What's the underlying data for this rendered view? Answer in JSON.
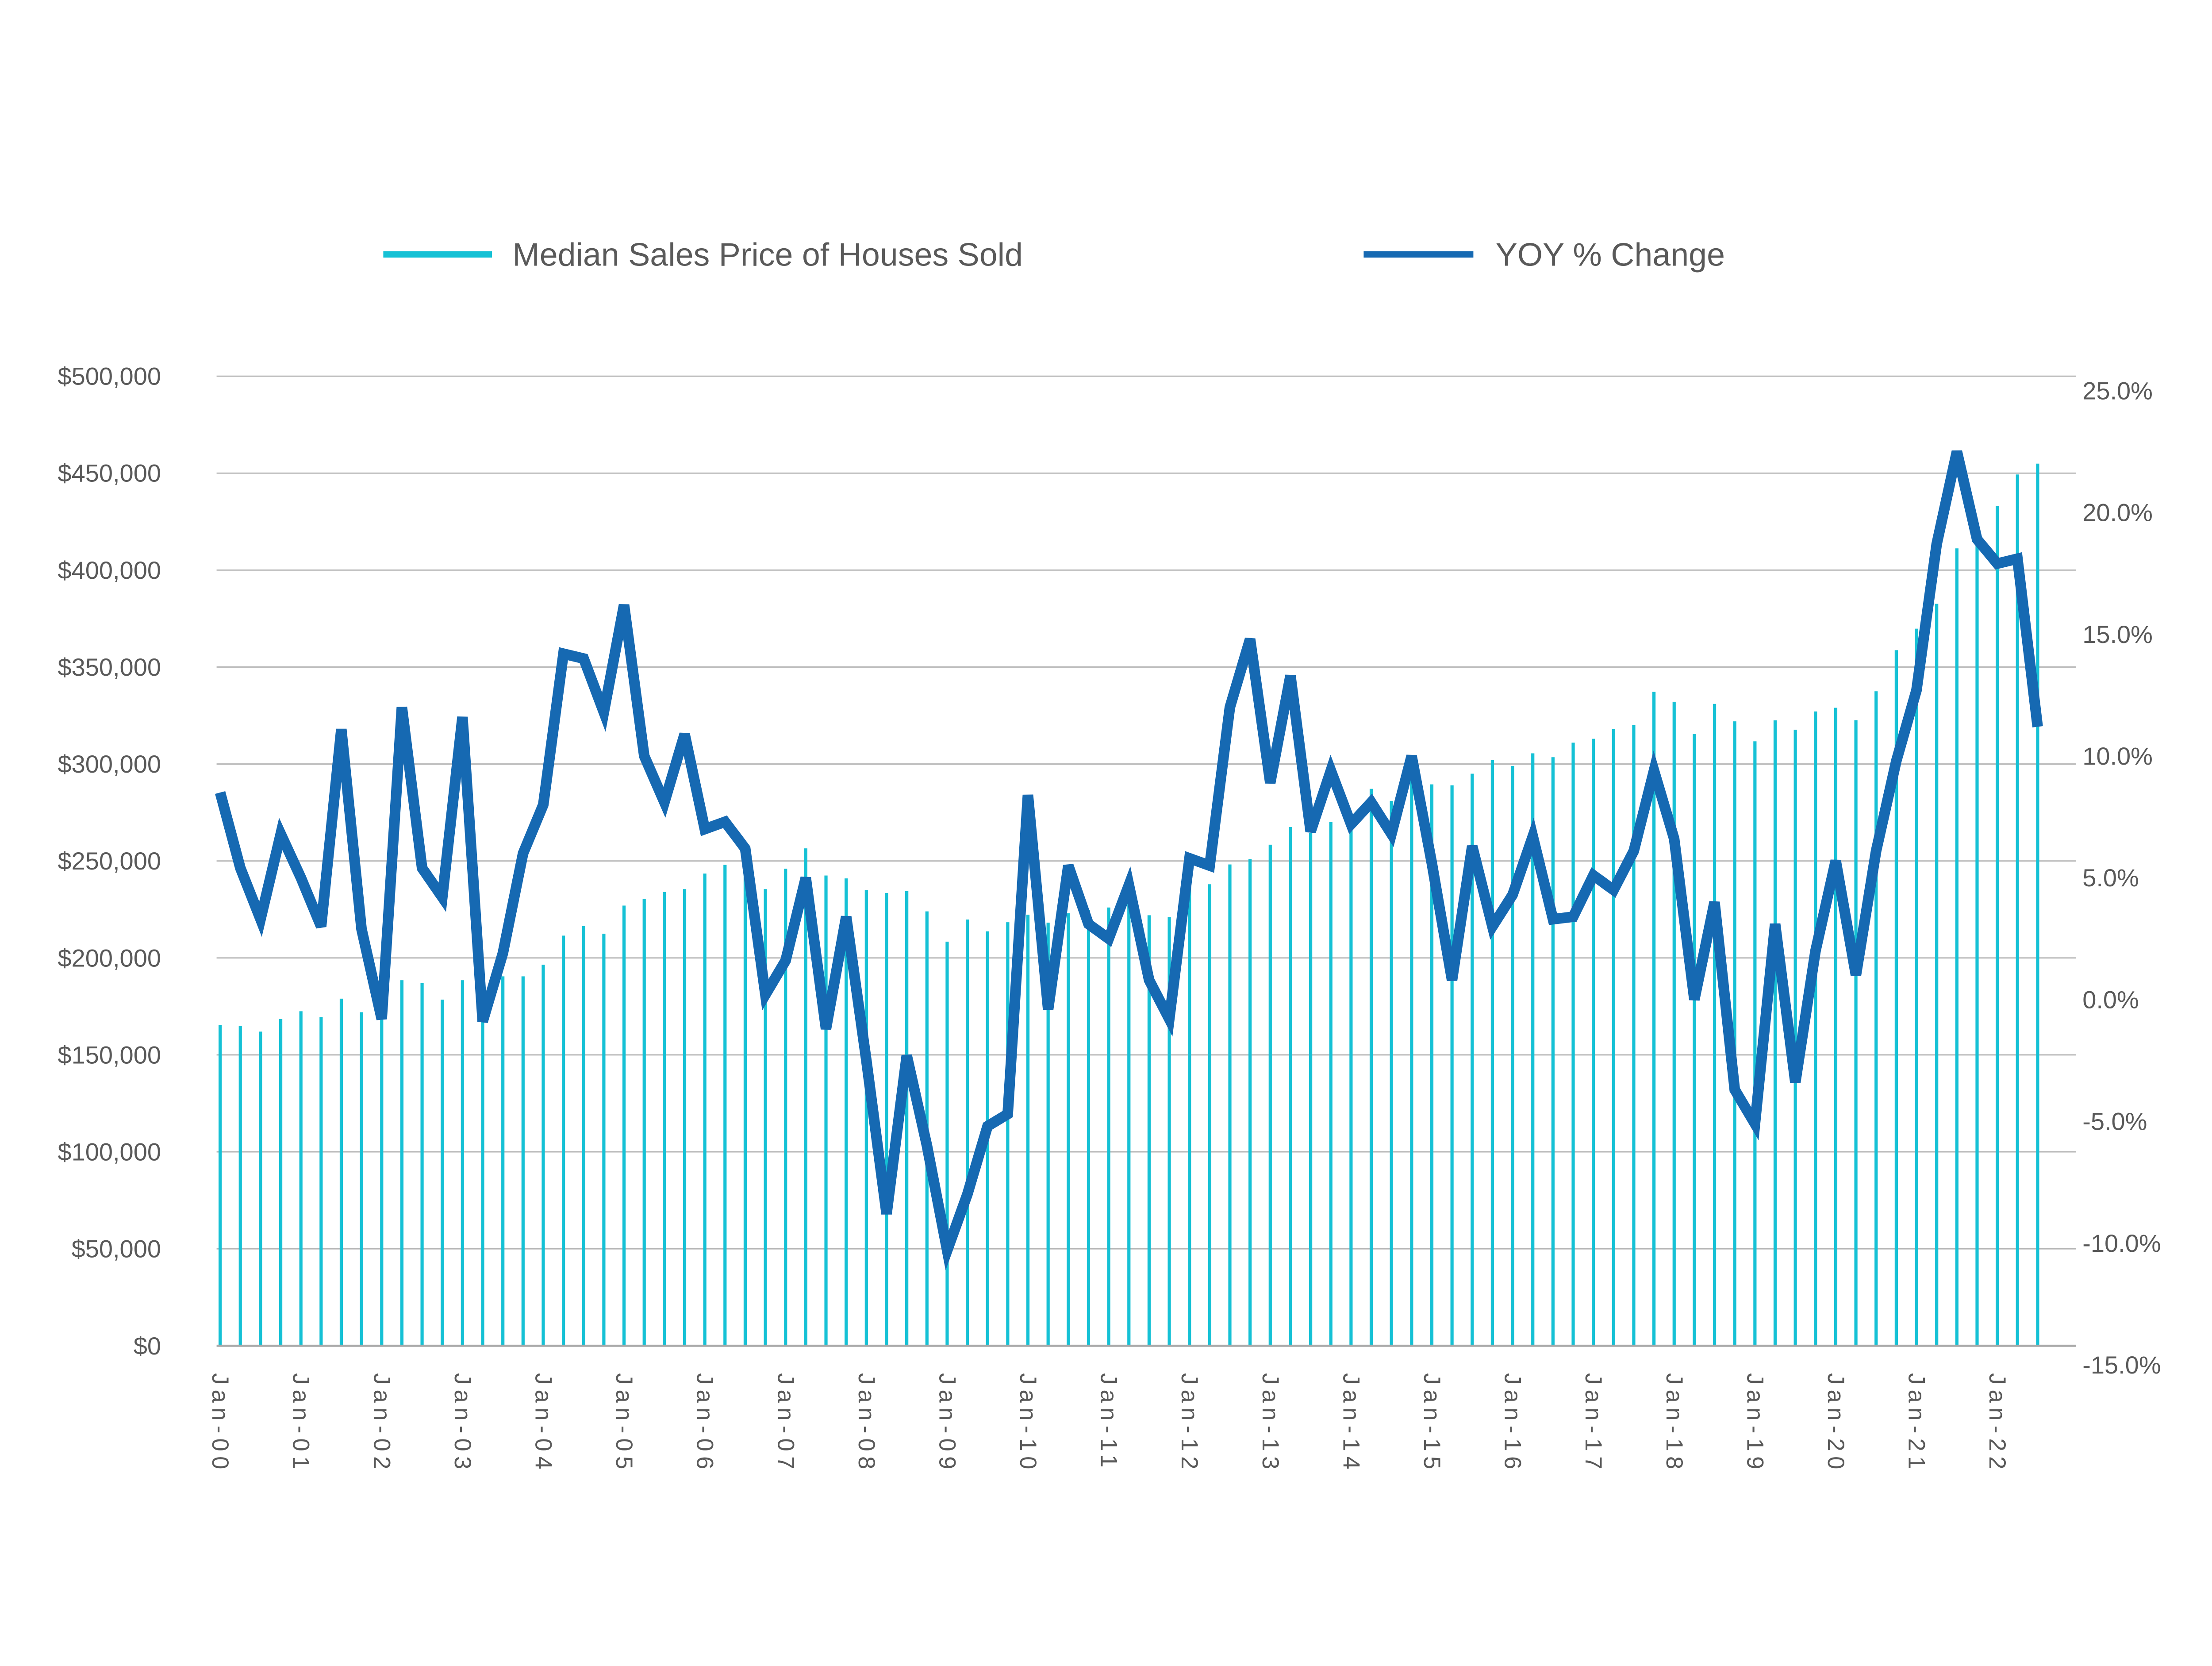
{
  "page": {
    "background": "#ffffff"
  },
  "colors": {
    "bar": "#15C1D5",
    "line": "#1669B2",
    "grid": "#B5B5B5",
    "axis_line": "#A9A9A9",
    "label_text": "#595959"
  },
  "legend": {
    "items": [
      {
        "label": "Median Sales Price of Houses Sold",
        "color": "#15C1D5"
      },
      {
        "label": "YOY % Change",
        "color": "#1669B2"
      }
    ]
  },
  "chart_data": {
    "type": "combo-bar-line",
    "title": "",
    "grid": "horizontal",
    "legend_position": "top",
    "x": [
      "2000-Q1",
      "2000-Q2",
      "2000-Q3",
      "2000-Q4",
      "2001-Q1",
      "2001-Q2",
      "2001-Q3",
      "2001-Q4",
      "2002-Q1",
      "2002-Q2",
      "2002-Q3",
      "2002-Q4",
      "2003-Q1",
      "2003-Q2",
      "2003-Q3",
      "2003-Q4",
      "2004-Q1",
      "2004-Q2",
      "2004-Q3",
      "2004-Q4",
      "2005-Q1",
      "2005-Q2",
      "2005-Q3",
      "2005-Q4",
      "2006-Q1",
      "2006-Q2",
      "2006-Q3",
      "2006-Q4",
      "2007-Q1",
      "2007-Q2",
      "2007-Q3",
      "2007-Q4",
      "2008-Q1",
      "2008-Q2",
      "2008-Q3",
      "2008-Q4",
      "2009-Q1",
      "2009-Q2",
      "2009-Q3",
      "2009-Q4",
      "2010-Q1",
      "2010-Q2",
      "2010-Q3",
      "2010-Q4",
      "2011-Q1",
      "2011-Q2",
      "2011-Q3",
      "2011-Q4",
      "2012-Q1",
      "2012-Q2",
      "2012-Q3",
      "2012-Q4",
      "2013-Q1",
      "2013-Q2",
      "2013-Q3",
      "2013-Q4",
      "2014-Q1",
      "2014-Q2",
      "2014-Q3",
      "2014-Q4",
      "2015-Q1",
      "2015-Q2",
      "2015-Q3",
      "2015-Q4",
      "2016-Q1",
      "2016-Q2",
      "2016-Q3",
      "2016-Q4",
      "2017-Q1",
      "2017-Q2",
      "2017-Q3",
      "2017-Q4",
      "2018-Q1",
      "2018-Q2",
      "2018-Q3",
      "2018-Q4",
      "2019-Q1",
      "2019-Q2",
      "2019-Q3",
      "2019-Q4",
      "2020-Q1",
      "2020-Q2",
      "2020-Q3",
      "2020-Q4",
      "2021-Q1",
      "2021-Q2",
      "2021-Q3",
      "2021-Q4",
      "2022-Q1",
      "2022-Q2",
      "2022-Q3"
    ],
    "x_tick_labels": [
      "Jan-00",
      "Jan-01",
      "Jan-02",
      "Jan-03",
      "Jan-04",
      "Jan-05",
      "Jan-06",
      "Jan-07",
      "Jan-08",
      "Jan-09",
      "Jan-10",
      "Jan-11",
      "Jan-12",
      "Jan-13",
      "Jan-14",
      "Jan-15",
      "Jan-16",
      "Jan-17",
      "Jan-18",
      "Jan-19",
      "Jan-20",
      "Jan-21",
      "Jan-22"
    ],
    "series": [
      {
        "name": "Median Sales Price of Houses Sold",
        "type": "bar",
        "axis": "left",
        "color": "#15C1D5",
        "values": [
          165300,
          165000,
          162000,
          168500,
          172500,
          169500,
          179000,
          172000,
          171000,
          188500,
          187000,
          178500,
          188500,
          186500,
          190500,
          190500,
          196500,
          211500,
          216500,
          212500,
          227000,
          230500,
          234000,
          235500,
          243500,
          248000,
          245500,
          235500,
          246000,
          256500,
          242500,
          241000,
          235000,
          233500,
          234500,
          224000,
          208400,
          219800,
          213700,
          218400,
          222300,
          218200,
          223000,
          224600,
          226000,
          230700,
          222000,
          221000,
          238000,
          238000,
          248200,
          251000,
          258400,
          267500,
          264500,
          270000,
          274300,
          287200,
          281000,
          294000,
          289500,
          289000,
          295000,
          302000,
          299000,
          305500,
          303500,
          311000,
          313000,
          318000,
          320000,
          337200,
          332100,
          315400,
          331000,
          322000,
          311700,
          322500,
          317700,
          327100,
          329000,
          322600,
          337500,
          358700,
          369800,
          382600,
          411200,
          423600,
          433100,
          449300,
          454900
        ]
      },
      {
        "name": "YOY % Change",
        "type": "line",
        "axis": "right",
        "color": "#1669B2",
        "values": [
          8.5,
          5.4,
          3.3,
          6.8,
          5.0,
          3.0,
          11.1,
          2.9,
          -0.8,
          12.0,
          5.4,
          4.2,
          11.6,
          -0.9,
          1.9,
          6.0,
          8.0,
          14.2,
          14.0,
          11.8,
          16.2,
          10.0,
          8.1,
          10.9,
          7.0,
          7.3,
          6.2,
          0.2,
          1.6,
          5.0,
          -1.2,
          3.4,
          -2.5,
          -8.8,
          -2.3,
          -6.0,
          -10.3,
          -8.0,
          -5.2,
          -4.7,
          8.4,
          -0.4,
          5.5,
          3.1,
          2.5,
          4.7,
          0.8,
          -0.8,
          5.8,
          5.5,
          12.0,
          14.8,
          8.9,
          13.3,
          6.9,
          9.4,
          7.2,
          8.1,
          6.8,
          10.0,
          5.6,
          0.8,
          6.3,
          3.0,
          4.3,
          6.7,
          3.3,
          3.4,
          5.1,
          4.5,
          6.1,
          9.4,
          6.6,
          0.0,
          4.0,
          -3.7,
          -5.1,
          3.1,
          -3.4,
          2.0,
          5.7,
          1.0,
          6.1,
          9.8,
          12.7,
          18.7,
          22.5,
          18.9,
          17.9,
          18.1,
          11.2
        ]
      }
    ],
    "left_axis": {
      "min": 0,
      "max": 500000,
      "step": 50000,
      "ticks": [
        "$0",
        "$50,000",
        "$100,000",
        "$150,000",
        "$200,000",
        "$250,000",
        "$300,000",
        "$350,000",
        "$400,000",
        "$450,000",
        "$500,000"
      ]
    },
    "right_axis": {
      "min": -15,
      "max": 25,
      "step": 5,
      "ticks_top_down": [
        "25.0%",
        "20.0%",
        "15.0%",
        "10.0%",
        "5.0%",
        "0.0%",
        "-5.0%",
        "-10.0%",
        "-15.0%"
      ]
    }
  }
}
